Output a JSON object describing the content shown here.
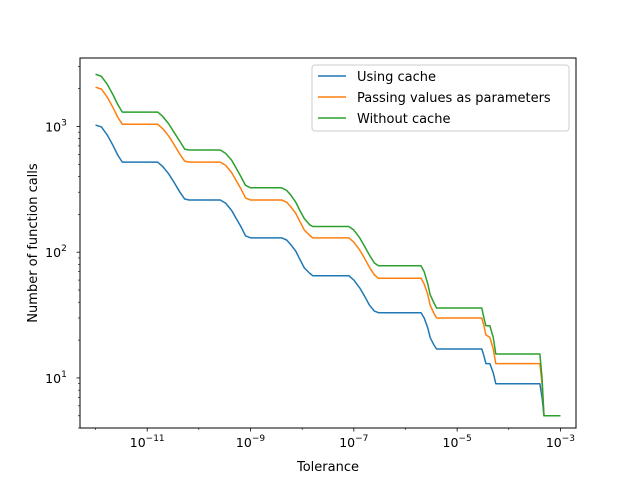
{
  "chart_data": {
    "type": "line",
    "xlabel": "Tolerance",
    "ylabel": "Number of function calls",
    "xscale": "log",
    "yscale": "log",
    "xlim": [
      5e-13,
      0.002
    ],
    "ylim": [
      4,
      3500
    ],
    "grid": false,
    "legend_position": "upper right",
    "xticks": [
      {
        "value": 1e-11,
        "base": "10",
        "exp": "−11"
      },
      {
        "value": 1e-09,
        "base": "10",
        "exp": "−9"
      },
      {
        "value": 1e-07,
        "base": "10",
        "exp": "−7"
      },
      {
        "value": 1e-05,
        "base": "10",
        "exp": "−5"
      },
      {
        "value": 0.001,
        "base": "10",
        "exp": "−3"
      }
    ],
    "yticks": [
      {
        "value": 10,
        "base": "10",
        "exp": "1"
      },
      {
        "value": 100,
        "base": "10",
        "exp": "2"
      },
      {
        "value": 1000,
        "base": "10",
        "exp": "3"
      }
    ],
    "series": [
      {
        "name": "Using cache",
        "color": "#1f77b4",
        "points": [
          [
            1e-12,
            1025
          ],
          [
            1.3e-12,
            990
          ],
          [
            1.7e-12,
            850
          ],
          [
            2.2e-12,
            700
          ],
          [
            2.7e-12,
            590
          ],
          [
            3.3e-12,
            520
          ],
          [
            1.6e-11,
            520
          ],
          [
            2e-11,
            480
          ],
          [
            2.6e-11,
            420
          ],
          [
            3.3e-11,
            360
          ],
          [
            4.3e-11,
            300
          ],
          [
            5.3e-11,
            265
          ],
          [
            6.5e-11,
            260
          ],
          [
            2.6e-10,
            260
          ],
          [
            3.3e-10,
            245
          ],
          [
            4.3e-10,
            215
          ],
          [
            5.3e-10,
            185
          ],
          [
            6.5e-10,
            160
          ],
          [
            8e-10,
            135
          ],
          [
            1e-09,
            130
          ],
          [
            4e-09,
            130
          ],
          [
            5e-09,
            125
          ],
          [
            6e-09,
            115
          ],
          [
            7.5e-09,
            102
          ],
          [
            9e-09,
            88
          ],
          [
            1.1e-08,
            75
          ],
          [
            1.4e-08,
            68
          ],
          [
            1.6e-08,
            65
          ],
          [
            8e-08,
            65
          ],
          [
            1e-07,
            60
          ],
          [
            1.3e-07,
            52
          ],
          [
            1.6e-07,
            45
          ],
          [
            2e-07,
            38
          ],
          [
            2.5e-07,
            34
          ],
          [
            3e-07,
            33
          ],
          [
            2e-06,
            33
          ],
          [
            2.3e-06,
            30
          ],
          [
            2.7e-06,
            25
          ],
          [
            3e-06,
            21
          ],
          [
            3.5e-06,
            18.5
          ],
          [
            4e-06,
            17
          ],
          [
            3e-05,
            17
          ],
          [
            3.3e-05,
            15
          ],
          [
            3.6e-05,
            13
          ],
          [
            4.3e-05,
            13
          ],
          [
            5e-05,
            11
          ],
          [
            5.6e-05,
            9
          ],
          [
            0.0004,
            9
          ],
          [
            0.00044,
            7
          ],
          [
            0.00048,
            5
          ],
          [
            0.001,
            5
          ]
        ]
      },
      {
        "name": "Passing values as parameters",
        "color": "#ff7f0e",
        "points": [
          [
            1e-12,
            2050
          ],
          [
            1.3e-12,
            1980
          ],
          [
            1.7e-12,
            1700
          ],
          [
            2.2e-12,
            1400
          ],
          [
            2.7e-12,
            1180
          ],
          [
            3.3e-12,
            1040
          ],
          [
            1.6e-11,
            1040
          ],
          [
            2e-11,
            960
          ],
          [
            2.6e-11,
            840
          ],
          [
            3.3e-11,
            720
          ],
          [
            4.3e-11,
            600
          ],
          [
            5.3e-11,
            530
          ],
          [
            6.5e-11,
            520
          ],
          [
            2.6e-10,
            520
          ],
          [
            3.3e-10,
            490
          ],
          [
            4.3e-10,
            430
          ],
          [
            5.3e-10,
            370
          ],
          [
            6.5e-10,
            320
          ],
          [
            8e-10,
            270
          ],
          [
            1e-09,
            260
          ],
          [
            4e-09,
            260
          ],
          [
            5e-09,
            250
          ],
          [
            6e-09,
            230
          ],
          [
            7.5e-09,
            204
          ],
          [
            9e-09,
            176
          ],
          [
            1.1e-08,
            150
          ],
          [
            1.4e-08,
            136
          ],
          [
            1.6e-08,
            130
          ],
          [
            8e-08,
            130
          ],
          [
            1e-07,
            120
          ],
          [
            1.3e-07,
            104
          ],
          [
            1.6e-07,
            90
          ],
          [
            2e-07,
            76
          ],
          [
            2.5e-07,
            66
          ],
          [
            3e-07,
            62
          ],
          [
            2e-06,
            62
          ],
          [
            2.3e-06,
            56
          ],
          [
            2.7e-06,
            46
          ],
          [
            3e-06,
            38
          ],
          [
            3.5e-06,
            33
          ],
          [
            4e-06,
            30
          ],
          [
            3e-05,
            30
          ],
          [
            3.3e-05,
            26
          ],
          [
            3.6e-05,
            22
          ],
          [
            4.3e-05,
            21
          ],
          [
            5e-05,
            17
          ],
          [
            5.6e-05,
            13
          ],
          [
            0.0004,
            13
          ],
          [
            0.00044,
            9
          ],
          [
            0.00048,
            5
          ],
          [
            0.001,
            5
          ]
        ]
      },
      {
        "name": "Without cache",
        "color": "#2ca02c",
        "points": [
          [
            1e-12,
            2600
          ],
          [
            1.3e-12,
            2500
          ],
          [
            1.7e-12,
            2150
          ],
          [
            2.2e-12,
            1770
          ],
          [
            2.7e-12,
            1490
          ],
          [
            3.3e-12,
            1300
          ],
          [
            1.6e-11,
            1300
          ],
          [
            2e-11,
            1200
          ],
          [
            2.6e-11,
            1050
          ],
          [
            3.3e-11,
            900
          ],
          [
            4.3e-11,
            760
          ],
          [
            5.3e-11,
            660
          ],
          [
            6.5e-11,
            650
          ],
          [
            2.6e-10,
            650
          ],
          [
            3.3e-10,
            610
          ],
          [
            4.3e-10,
            540
          ],
          [
            5.3e-10,
            465
          ],
          [
            6.5e-10,
            400
          ],
          [
            8e-10,
            340
          ],
          [
            1e-09,
            325
          ],
          [
            4e-09,
            325
          ],
          [
            5e-09,
            310
          ],
          [
            6e-09,
            285
          ],
          [
            7.5e-09,
            250
          ],
          [
            9e-09,
            215
          ],
          [
            1.1e-08,
            185
          ],
          [
            1.4e-08,
            165
          ],
          [
            1.6e-08,
            160
          ],
          [
            8e-08,
            160
          ],
          [
            1e-07,
            150
          ],
          [
            1.3e-07,
            130
          ],
          [
            1.6e-07,
            112
          ],
          [
            2e-07,
            95
          ],
          [
            2.5e-07,
            82
          ],
          [
            3e-07,
            78
          ],
          [
            2e-06,
            78
          ],
          [
            2.3e-06,
            70
          ],
          [
            2.7e-06,
            56
          ],
          [
            3e-06,
            46
          ],
          [
            3.5e-06,
            40
          ],
          [
            4e-06,
            36
          ],
          [
            3e-05,
            36
          ],
          [
            3.3e-05,
            30
          ],
          [
            3.6e-05,
            26
          ],
          [
            4.3e-05,
            26
          ],
          [
            5e-05,
            21
          ],
          [
            5.6e-05,
            15.5
          ],
          [
            0.0004,
            15.5
          ],
          [
            0.00044,
            10
          ],
          [
            0.00048,
            5
          ],
          [
            0.001,
            5
          ]
        ]
      }
    ]
  }
}
